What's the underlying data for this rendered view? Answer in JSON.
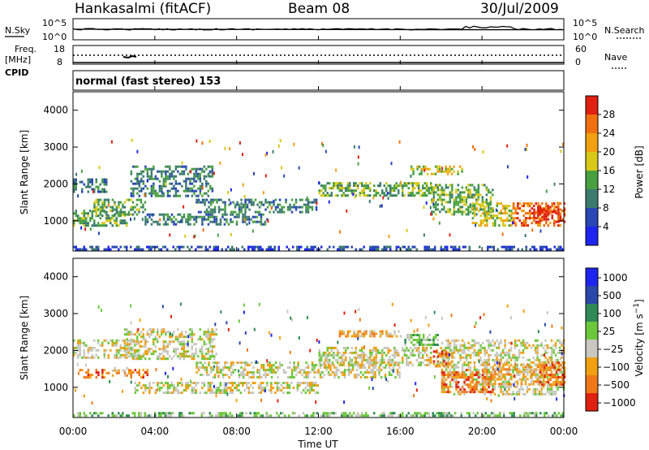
{
  "header": {
    "station": "Hankasalmi (fitACF)",
    "beam": "Beam 08",
    "date": "30/Jul/2009",
    "cpid_text": "normal (fast stereo) 153"
  },
  "top_panels": {
    "nsky_label": "N.Sky",
    "nsky_ticks": [
      "10^5",
      "10^0"
    ],
    "nsearch_label": "N.Search",
    "nsearch_ticks": [
      "10^5",
      "10^0"
    ],
    "freq_label_1": "Freq.",
    "freq_label_2": "[MHz]",
    "freq_ticks": [
      "18",
      "8"
    ],
    "nave_label": "Nave",
    "nave_ticks": [
      "60",
      "0"
    ],
    "cpid_label": "CPID"
  },
  "colors": {
    "power_scale": [
      "#1e24f0",
      "#2846b4",
      "#3c7a6e",
      "#48a040",
      "#d8c818",
      "#f0a010",
      "#f07010",
      "#e02010"
    ],
    "velocity_scale": [
      "#1e24f0",
      "#2a48aa",
      "#2f8a55",
      "#6cc83a",
      "#c8c8c0",
      "#f0a010",
      "#f07818",
      "#e02010"
    ],
    "ground_scatter": "#c8c8c0"
  },
  "chart_data": [
    {
      "type": "heatmap",
      "name": "power",
      "ylabel": "Slant Range [km]",
      "ylim": [
        180,
        4500
      ],
      "xlim_hours": [
        0,
        24
      ],
      "y_ticks": [
        1000,
        2000,
        3000,
        4000
      ],
      "colorbar": {
        "label": "Power [dB]",
        "range": [
          0,
          32
        ],
        "ticks": [
          "4",
          "8",
          "12",
          "16",
          "20",
          "24",
          "28"
        ]
      },
      "bands": [
        {
          "t": [
            0.0,
            2.6
          ],
          "r": [
            850,
            1300
          ],
          "level": 3
        },
        {
          "t": [
            0.0,
            1.6
          ],
          "r": [
            1800,
            2150
          ],
          "level": 2
        },
        {
          "t": [
            1.0,
            3.5
          ],
          "r": [
            1150,
            1600
          ],
          "level": 3
        },
        {
          "t": [
            2.8,
            6.8
          ],
          "r": [
            1700,
            2500
          ],
          "level": 2
        },
        {
          "t": [
            3.5,
            9.5
          ],
          "r": [
            900,
            1200
          ],
          "level": 2
        },
        {
          "t": [
            6.0,
            12.0
          ],
          "r": [
            1250,
            1600
          ],
          "level": 2
        },
        {
          "t": [
            12.0,
            17.5
          ],
          "r": [
            1700,
            2050
          ],
          "level": 3
        },
        {
          "t": [
            16.5,
            19.0
          ],
          "r": [
            2250,
            2500
          ],
          "level": 4
        },
        {
          "t": [
            17.5,
            20.5
          ],
          "r": [
            1200,
            2000
          ],
          "level": 3
        },
        {
          "t": [
            19.5,
            21.5
          ],
          "r": [
            900,
            1500
          ],
          "level": 4
        },
        {
          "t": [
            21.5,
            24.0
          ],
          "r": [
            900,
            1500
          ],
          "level": 6
        },
        {
          "t": [
            22.5,
            24.0
          ],
          "r": [
            1000,
            1400
          ],
          "level": 7
        },
        {
          "t": [
            0.0,
            24.0
          ],
          "r": [
            200,
            320
          ],
          "level": 1
        }
      ]
    },
    {
      "type": "heatmap",
      "name": "velocity",
      "ylabel": "Slant Range [km]",
      "ylim": [
        180,
        4500
      ],
      "xlim_hours": [
        0,
        24
      ],
      "y_ticks": [
        1000,
        2000,
        3000,
        4000
      ],
      "colorbar": {
        "label": "Velocity [m s^-1]",
        "range": [
          -1000,
          1000
        ],
        "ticks": [
          "1000",
          "500",
          "100",
          "25",
          "−25",
          "−100",
          "−500",
          "−1000"
        ]
      },
      "bands": [
        {
          "t": [
            0.0,
            3.2
          ],
          "r": [
            1800,
            2300
          ],
          "level": 4
        },
        {
          "t": [
            2.5,
            7.0
          ],
          "r": [
            1800,
            2600
          ],
          "level": 4
        },
        {
          "t": [
            3.0,
            12.0
          ],
          "r": [
            850,
            1150
          ],
          "level": 4
        },
        {
          "t": [
            6.0,
            16.0
          ],
          "r": [
            1300,
            1700
          ],
          "level": 4
        },
        {
          "t": [
            12.0,
            18.5
          ],
          "r": [
            1600,
            2100
          ],
          "level": 4
        },
        {
          "t": [
            18.0,
            24.0
          ],
          "r": [
            800,
            2300
          ],
          "level": 4
        },
        {
          "t": [
            0.3,
            1.5
          ],
          "r": [
            1250,
            1500
          ],
          "level": 6
        },
        {
          "t": [
            1.5,
            2.8
          ],
          "r": [
            1350,
            1550
          ],
          "level": 5
        },
        {
          "t": [
            2.6,
            3.6
          ],
          "r": [
            1300,
            1500
          ],
          "level": 6
        },
        {
          "t": [
            13.0,
            16.0
          ],
          "r": [
            2400,
            2550
          ],
          "level": 5
        },
        {
          "t": [
            16.2,
            17.8
          ],
          "r": [
            2150,
            2450
          ],
          "level": 3
        },
        {
          "t": [
            17.6,
            18.5
          ],
          "r": [
            1600,
            2000
          ],
          "level": 6
        },
        {
          "t": [
            18.0,
            20.5
          ],
          "r": [
            900,
            1500
          ],
          "level": 6
        },
        {
          "t": [
            20.0,
            23.0
          ],
          "r": [
            1100,
            1650
          ],
          "level": 5
        },
        {
          "t": [
            22.8,
            24.0
          ],
          "r": [
            1100,
            1700
          ],
          "level": 6
        },
        {
          "t": [
            0.0,
            24.0
          ],
          "r": [
            200,
            330
          ],
          "level": 3
        }
      ]
    }
  ],
  "x_ticks": [
    "00:00",
    "04:00",
    "08:00",
    "12:00",
    "16:00",
    "20:00",
    "00:00"
  ],
  "xlabel": "Time UT"
}
